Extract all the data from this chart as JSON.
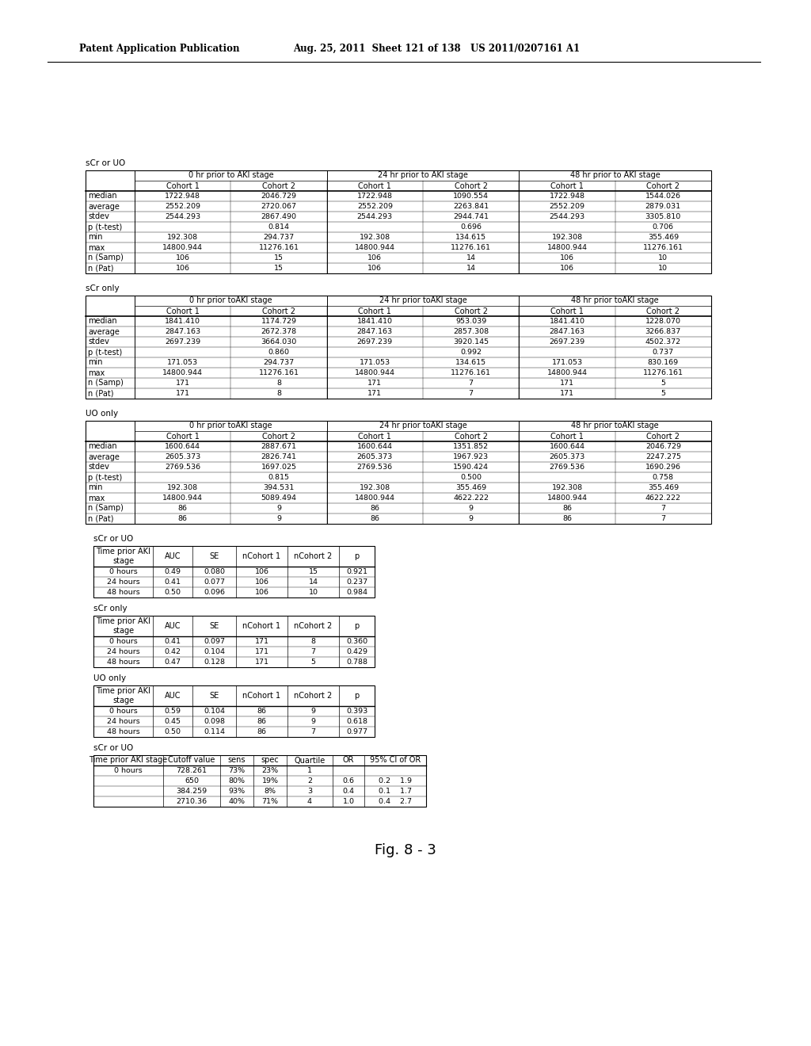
{
  "header_line1": "Patent Application Publication",
  "header_line2": "Aug. 25, 2011  Sheet 121 of 138   US 2011/0207161 A1",
  "figure_label": "Fig. 8 - 3",
  "table1_label": "sCr or UO",
  "table2_label": "sCr only",
  "table3_label": "UO only",
  "table4_label": "sCr or UO",
  "table5_label": "sCr only",
  "table6_label": "UO only",
  "table7_label": "sCr or UO",
  "table1": {
    "col_groups": [
      "0 hr prior to AKI stage",
      "24 hr prior to AKI stage",
      "48 hr prior to AKI stage"
    ],
    "col_headers": [
      "Cohort 1",
      "Cohort 2",
      "Cohort 1",
      "Cohort 2",
      "Cohort 1",
      "Cohort 2"
    ],
    "row_labels": [
      "median",
      "average",
      "stdev",
      "p (t-test)",
      "min",
      "max",
      "n (Samp)",
      "n (Pat)"
    ],
    "data": [
      [
        "1722.948",
        "2046.729",
        "1722.948",
        "1090.554",
        "1722.948",
        "1544.026"
      ],
      [
        "2552.209",
        "2720.067",
        "2552.209",
        "2263.841",
        "2552.209",
        "2879.031"
      ],
      [
        "2544.293",
        "2867.490",
        "2544.293",
        "2944.741",
        "2544.293",
        "3305.810"
      ],
      [
        "",
        "0.814",
        "",
        "0.696",
        "",
        "0.706"
      ],
      [
        "192.308",
        "294.737",
        "192.308",
        "134.615",
        "192.308",
        "355.469"
      ],
      [
        "14800.944",
        "11276.161",
        "14800.944",
        "11276.161",
        "14800.944",
        "11276.161"
      ],
      [
        "106",
        "15",
        "106",
        "14",
        "106",
        "10"
      ],
      [
        "106",
        "15",
        "106",
        "14",
        "106",
        "10"
      ]
    ]
  },
  "table2": {
    "col_groups": [
      "0 hr prior toAKI stage",
      "24 hr prior toAKI stage",
      "48 hr prior toAKI stage"
    ],
    "col_headers": [
      "Cohort 1",
      "Cohort 2",
      "Cohort 1",
      "Cohort 2",
      "Cohort 1",
      "Cohort 2"
    ],
    "row_labels": [
      "median",
      "average",
      "stdev",
      "p (t-test)",
      "min",
      "max",
      "n (Samp)",
      "n (Pat)"
    ],
    "data": [
      [
        "1841.410",
        "1174.729",
        "1841.410",
        "953.039",
        "1841.410",
        "1228.070"
      ],
      [
        "2847.163",
        "2672.378",
        "2847.163",
        "2857.308",
        "2847.163",
        "3266.837"
      ],
      [
        "2697.239",
        "3664.030",
        "2697.239",
        "3920.145",
        "2697.239",
        "4502.372"
      ],
      [
        "",
        "0.860",
        "",
        "0.992",
        "",
        "0.737"
      ],
      [
        "171.053",
        "294.737",
        "171.053",
        "134.615",
        "171.053",
        "830.169"
      ],
      [
        "14800.944",
        "11276.161",
        "14800.944",
        "11276.161",
        "14800.944",
        "11276.161"
      ],
      [
        "171",
        "8",
        "171",
        "7",
        "171",
        "5"
      ],
      [
        "171",
        "8",
        "171",
        "7",
        "171",
        "5"
      ]
    ]
  },
  "table3": {
    "col_groups": [
      "0 hr prior toAKI stage",
      "24 hr prior toAKI stage",
      "48 hr prior toAKI stage"
    ],
    "col_headers": [
      "Cohort 1",
      "Cohort 2",
      "Cohort 1",
      "Cohort 2",
      "Cohort 1",
      "Cohort 2"
    ],
    "row_labels": [
      "median",
      "average",
      "stdev",
      "p (t-test)",
      "min",
      "max",
      "n (Samp)",
      "n (Pat)"
    ],
    "data": [
      [
        "1600.644",
        "2887.671",
        "1600.644",
        "1351.852",
        "1600.644",
        "2046.729"
      ],
      [
        "2605.373",
        "2826.741",
        "2605.373",
        "1967.923",
        "2605.373",
        "2247.275"
      ],
      [
        "2769.536",
        "1697.025",
        "2769.536",
        "1590.424",
        "2769.536",
        "1690.296"
      ],
      [
        "",
        "0.815",
        "",
        "0.500",
        "",
        "0.758"
      ],
      [
        "192.308",
        "394.531",
        "192.308",
        "355.469",
        "192.308",
        "355.469"
      ],
      [
        "14800.944",
        "5089.494",
        "14800.944",
        "4622.222",
        "14800.944",
        "4622.222"
      ],
      [
        "86",
        "9",
        "86",
        "9",
        "86",
        "7"
      ],
      [
        "86",
        "9",
        "86",
        "9",
        "86",
        "7"
      ]
    ]
  },
  "table4": {
    "col_headers": [
      "Time prior AKI\nstage",
      "AUC",
      "SE",
      "nCohort 1",
      "nCohort 2",
      "p"
    ],
    "data": [
      [
        "0 hours",
        "0.49",
        "0.080",
        "106",
        "15",
        "0.921"
      ],
      [
        "24 hours",
        "0.41",
        "0.077",
        "106",
        "14",
        "0.237"
      ],
      [
        "48 hours",
        "0.50",
        "0.096",
        "106",
        "10",
        "0.984"
      ]
    ]
  },
  "table5": {
    "col_headers": [
      "Time prior AKI\nstage",
      "AUC",
      "SE",
      "nCohort 1",
      "nCohort 2",
      "p"
    ],
    "data": [
      [
        "0 hours",
        "0.41",
        "0.097",
        "171",
        "8",
        "0.360"
      ],
      [
        "24 hours",
        "0.42",
        "0.104",
        "171",
        "7",
        "0.429"
      ],
      [
        "48 hours",
        "0.47",
        "0.128",
        "171",
        "5",
        "0.788"
      ]
    ]
  },
  "table6": {
    "col_headers": [
      "Time prior AKI\nstage",
      "AUC",
      "SE",
      "nCohort 1",
      "nCohort 2",
      "p"
    ],
    "data": [
      [
        "0 hours",
        "0.59",
        "0.104",
        "86",
        "9",
        "0.393"
      ],
      [
        "24 hours",
        "0.45",
        "0.098",
        "86",
        "9",
        "0.618"
      ],
      [
        "48 hours",
        "0.50",
        "0.114",
        "86",
        "7",
        "0.977"
      ]
    ]
  },
  "table7": {
    "col_headers": [
      "Time prior AKI stage",
      "Cutoff value",
      "sens",
      "spec",
      "Quartile",
      "OR",
      "95% CI of OR"
    ],
    "data": [
      [
        "0 hours",
        "728.261",
        "73%",
        "23%",
        "1",
        "",
        ""
      ],
      [
        "",
        "650",
        "80%",
        "19%",
        "2",
        "0.6",
        "0.2    1.9"
      ],
      [
        "",
        "384.259",
        "93%",
        "8%",
        "3",
        "0.4",
        "0.1    1.7"
      ],
      [
        "",
        "2710.36",
        "40%",
        "71%",
        "4",
        "1.0",
        "0.4    2.7"
      ]
    ]
  }
}
